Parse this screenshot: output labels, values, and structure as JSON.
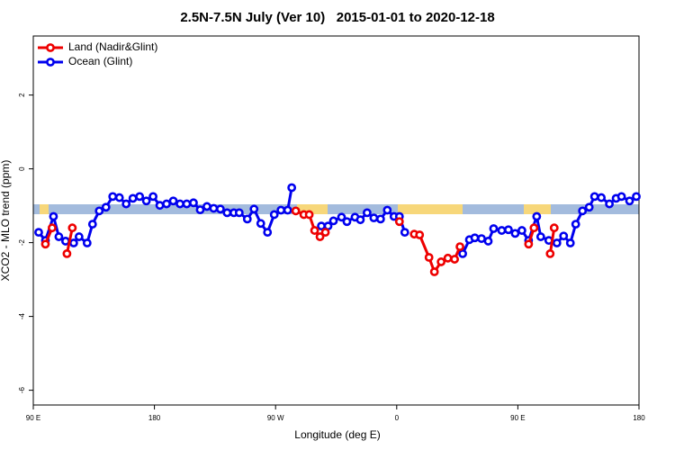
{
  "chart_data": {
    "type": "line",
    "title": "2.5N-7.5N July (Ver 10)   2015-01-01 to 2020-12-18",
    "xlabel": "Longitude (deg E)",
    "ylabel": "XCO2 - MLO trend (ppm)",
    "xlim": [
      90,
      540
    ],
    "ylim": [
      -6.4,
      3.6
    ],
    "xticks": [
      {
        "value": 90,
        "label": "90 E"
      },
      180,
      {
        "value": 270,
        "label": "90 W"
      },
      {
        "value": 360,
        "label": "0"
      },
      {
        "value": 450,
        "label": "90 E"
      },
      {
        "value": 540,
        "label": "180"
      }
    ],
    "yticks": [
      -6,
      -4,
      -2,
      0,
      2
    ],
    "legend": "topleft",
    "series": [
      {
        "name": "Ocean (Glint)",
        "color": "#0000ee",
        "x": [
          94,
          99,
          105,
          109,
          114,
          120,
          124,
          130,
          134,
          139,
          144,
          149,
          154,
          159,
          164,
          169,
          174,
          179,
          184,
          189,
          194,
          199,
          204,
          209,
          214,
          219,
          224,
          229,
          234,
          239,
          243,
          249,
          254,
          259,
          264,
          269,
          274,
          279,
          282,
          290,
          304,
          309,
          313,
          319,
          323,
          329,
          333,
          338,
          343,
          348,
          353,
          358,
          362,
          366,
          390,
          409,
          414,
          418,
          423,
          428,
          432,
          438,
          443,
          448,
          453,
          458,
          464,
          467,
          473,
          479,
          484,
          489,
          493,
          498,
          503,
          507,
          512,
          518,
          523,
          527,
          533,
          538
        ],
        "values": [
          -1.72,
          -1.94,
          -1.29,
          -1.84,
          -1.96,
          -2.01,
          -1.84,
          -2.01,
          -1.5,
          -1.14,
          -1.04,
          -0.75,
          -0.78,
          -0.95,
          -0.8,
          -0.75,
          -0.87,
          -0.75,
          -0.99,
          -0.95,
          -0.87,
          -0.95,
          -0.95,
          -0.92,
          -1.11,
          -1.02,
          -1.07,
          -1.09,
          -1.19,
          -1.19,
          -1.19,
          -1.36,
          -1.09,
          -1.48,
          -1.72,
          -1.24,
          -1.12,
          -1.12,
          -0.51,
          null,
          -1.55,
          -1.55,
          -1.41,
          -1.31,
          -1.43,
          -1.31,
          -1.38,
          -1.19,
          -1.33,
          -1.36,
          -1.12,
          -1.29,
          -1.29,
          -1.72,
          null,
          -2.3,
          -1.92,
          -1.87,
          -1.89,
          -1.96,
          -1.62,
          -1.67,
          -1.65,
          -1.75,
          -1.67,
          -1.94,
          -1.29,
          -1.84,
          -1.94,
          -2.01,
          -1.82,
          -2.01,
          -1.5,
          -1.14,
          -1.04,
          -0.75,
          -0.78,
          -0.95,
          -0.8,
          -0.75,
          -0.87,
          -0.75
        ]
      },
      {
        "name": "Land (Nadir&Glint)",
        "color": "#ee0000",
        "x": [
          99,
          104,
          110,
          115,
          119,
          200,
          285,
          291,
          295,
          299,
          303,
          307,
          350,
          362,
          364,
          373,
          377,
          384,
          388,
          393,
          398,
          403,
          407,
          430,
          458,
          462,
          466,
          474,
          477
        ],
        "values": [
          -2.04,
          -1.6,
          null,
          -2.3,
          -1.6,
          null,
          -1.14,
          -1.24,
          -1.24,
          -1.67,
          -1.84,
          -1.72,
          null,
          -1.43,
          null,
          -1.77,
          -1.79,
          -2.4,
          -2.79,
          -2.52,
          -2.42,
          -2.45,
          -2.11,
          null,
          -2.04,
          -1.6,
          null,
          -2.3,
          -1.6
        ]
      }
    ]
  }
}
